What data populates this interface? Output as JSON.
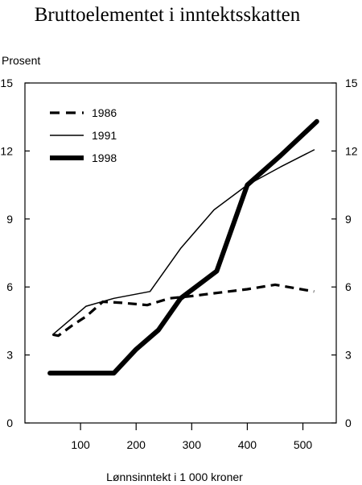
{
  "chart_data": {
    "type": "line",
    "title": "Bruttoelementet i inntektsskatten",
    "ylabel": "Prosent",
    "xlabel": "Lønnsinntekt i 1 000 kroner",
    "xlim": [
      0,
      560
    ],
    "ylim": [
      0,
      15
    ],
    "xticks": [
      100,
      200,
      300,
      400,
      500
    ],
    "yticks": [
      0,
      3,
      6,
      9,
      12,
      15
    ],
    "grid": false,
    "legend_position": "top-left",
    "series": [
      {
        "name": "1986",
        "style": "dashed",
        "color": "#000000",
        "points": [
          [
            50,
            3.9
          ],
          [
            60,
            3.85
          ],
          [
            85,
            4.3
          ],
          [
            110,
            4.7
          ],
          [
            140,
            5.35
          ],
          [
            175,
            5.3
          ],
          [
            220,
            5.2
          ],
          [
            260,
            5.5
          ],
          [
            300,
            5.6
          ],
          [
            350,
            5.75
          ],
          [
            400,
            5.9
          ],
          [
            450,
            6.1
          ],
          [
            520,
            5.8
          ]
        ]
      },
      {
        "name": "1991",
        "style": "solid-thin",
        "color": "#000000",
        "points": [
          [
            50,
            3.9
          ],
          [
            110,
            5.15
          ],
          [
            160,
            5.5
          ],
          [
            225,
            5.8
          ],
          [
            280,
            7.7
          ],
          [
            340,
            9.4
          ],
          [
            400,
            10.5
          ],
          [
            460,
            11.3
          ],
          [
            520,
            12.05
          ]
        ]
      },
      {
        "name": "1998",
        "style": "solid-thick",
        "color": "#000000",
        "points": [
          [
            45,
            2.2
          ],
          [
            100,
            2.2
          ],
          [
            160,
            2.2
          ],
          [
            200,
            3.25
          ],
          [
            240,
            4.1
          ],
          [
            280,
            5.5
          ],
          [
            345,
            6.7
          ],
          [
            400,
            10.5
          ],
          [
            460,
            11.8
          ],
          [
            525,
            13.3
          ]
        ]
      }
    ]
  }
}
